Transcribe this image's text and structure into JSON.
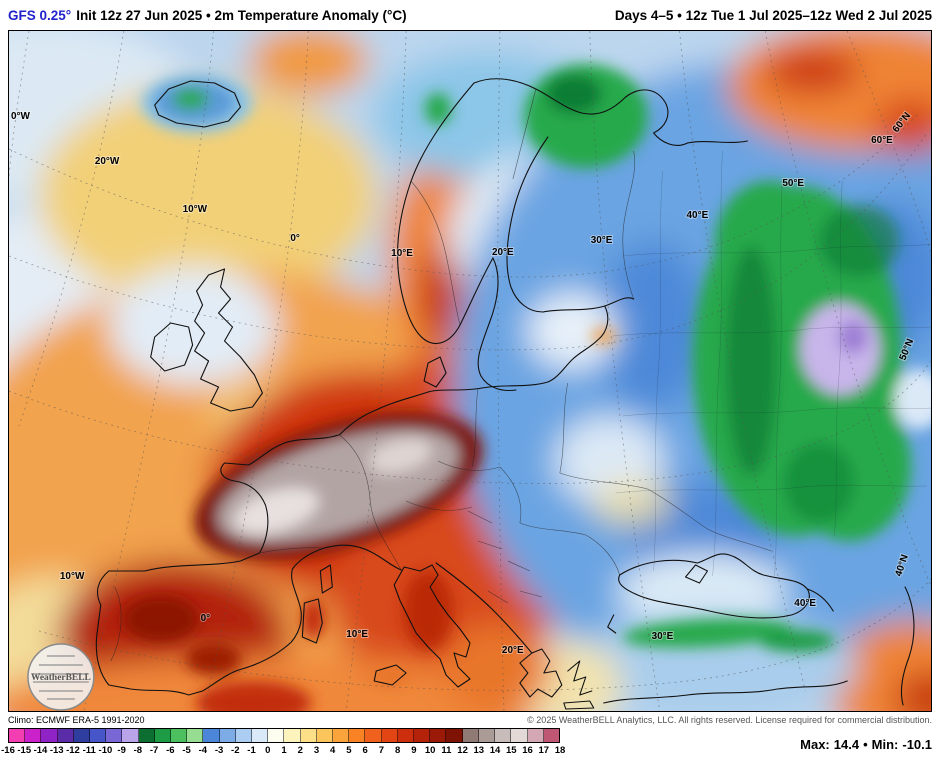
{
  "header": {
    "model": "GFS 0.25°",
    "subtitle": "Init 12z 27 Jun 2025 • 2m Temperature Anomaly (°C)",
    "valid_range": "Days 4–5 • 12z Tue 1 Jul 2025–12z Wed 2 Jul 2025"
  },
  "colors": {
    "title_accent": "#2222cc"
  },
  "map": {
    "logo_text": "WeatherBELL",
    "coord_labels": [
      {
        "text": "0°W"
      },
      {
        "text": "20°W"
      },
      {
        "text": "10°W"
      },
      {
        "text": "0°"
      },
      {
        "text": "10°E"
      },
      {
        "text": "20°E"
      },
      {
        "text": "30°E"
      },
      {
        "text": "40°E"
      },
      {
        "text": "50°E"
      },
      {
        "text": "60°E"
      },
      {
        "text": "60°N"
      },
      {
        "text": "50°N"
      },
      {
        "text": "40°N"
      },
      {
        "text": "10°W"
      },
      {
        "text": "0°"
      },
      {
        "text": "10°E"
      },
      {
        "text": "20°E"
      },
      {
        "text": "30°E"
      },
      {
        "text": "40°E"
      }
    ]
  },
  "footer": {
    "climo": "Climo: ECMWF ERA-5 1991-2020",
    "copyright": "© 2025 WeatherBELL Analytics, LLC. All rights reserved. License required for commercial distribution."
  },
  "colorbar": {
    "ticks": [
      "-16",
      "-15",
      "-14",
      "-13",
      "-12",
      "-11",
      "-10",
      "-9",
      "-8",
      "-7",
      "-6",
      "-5",
      "-4",
      "-3",
      "-2",
      "-1",
      "0",
      "1",
      "2",
      "3",
      "4",
      "5",
      "6",
      "7",
      "8",
      "9",
      "10",
      "11",
      "12",
      "13",
      "14",
      "15",
      "16",
      "17",
      "18"
    ],
    "segment_colors": [
      "#f33eb1",
      "#cb21cb",
      "#9023c5",
      "#5b2ca8",
      "#2f3d9e",
      "#4656c8",
      "#7a67d6",
      "#b9a4ea",
      "#0d6e31",
      "#1d9c45",
      "#4cc05e",
      "#97dd91",
      "#4c86d8",
      "#7dabe6",
      "#aacdf1",
      "#d9e9f8",
      "#fdfdf0",
      "#fcf3bd",
      "#fcdf86",
      "#fcc55c",
      "#fba43c",
      "#f88224",
      "#ef611c",
      "#e24414",
      "#cd2f0e",
      "#b5220a",
      "#9a1a07",
      "#7e1304",
      "#8f7b74",
      "#ab9b96",
      "#c8bcba",
      "#e3dad8",
      "#d3a7b4",
      "#bf5673"
    ]
  },
  "stats": {
    "max_label": "Max:",
    "max_value": "14.4",
    "bullet": "•",
    "min_label": "Min:",
    "min_value": "-10.1"
  }
}
